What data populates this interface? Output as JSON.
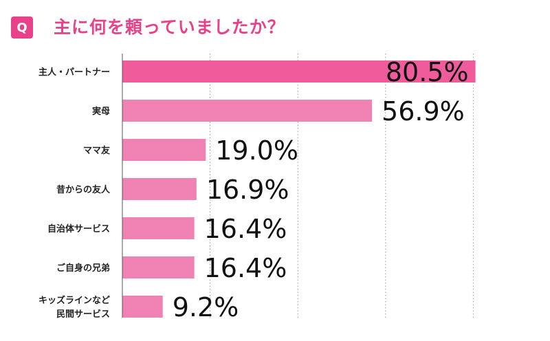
{
  "header": {
    "badge": "Q",
    "question": "主に何を頼っていましたか？"
  },
  "colors": {
    "accent": "#e8418a",
    "bar_primary": "#ef5b9b",
    "bar_secondary": "#f082b3",
    "value_text": "#111111",
    "grid": "#9a9a9a"
  },
  "chart_data": {
    "type": "bar",
    "orientation": "horizontal",
    "categories": [
      [
        "主人・パートナー"
      ],
      [
        "実母"
      ],
      [
        "ママ友"
      ],
      [
        "昔からの友人"
      ],
      [
        "自治体サービス"
      ],
      [
        "ご自身の兄弟"
      ],
      [
        "キッズラインなど",
        "民間サービス"
      ]
    ],
    "values": [
      80.5,
      56.9,
      19.0,
      16.9,
      16.4,
      16.4,
      9.2
    ],
    "value_labels": [
      "80.5%",
      "56.9%",
      "19.0%",
      "16.9%",
      "16.4%",
      "16.4%",
      "9.2%"
    ],
    "xlim": [
      0,
      100
    ],
    "grid": true,
    "grid_style": "dotted-vertical"
  }
}
